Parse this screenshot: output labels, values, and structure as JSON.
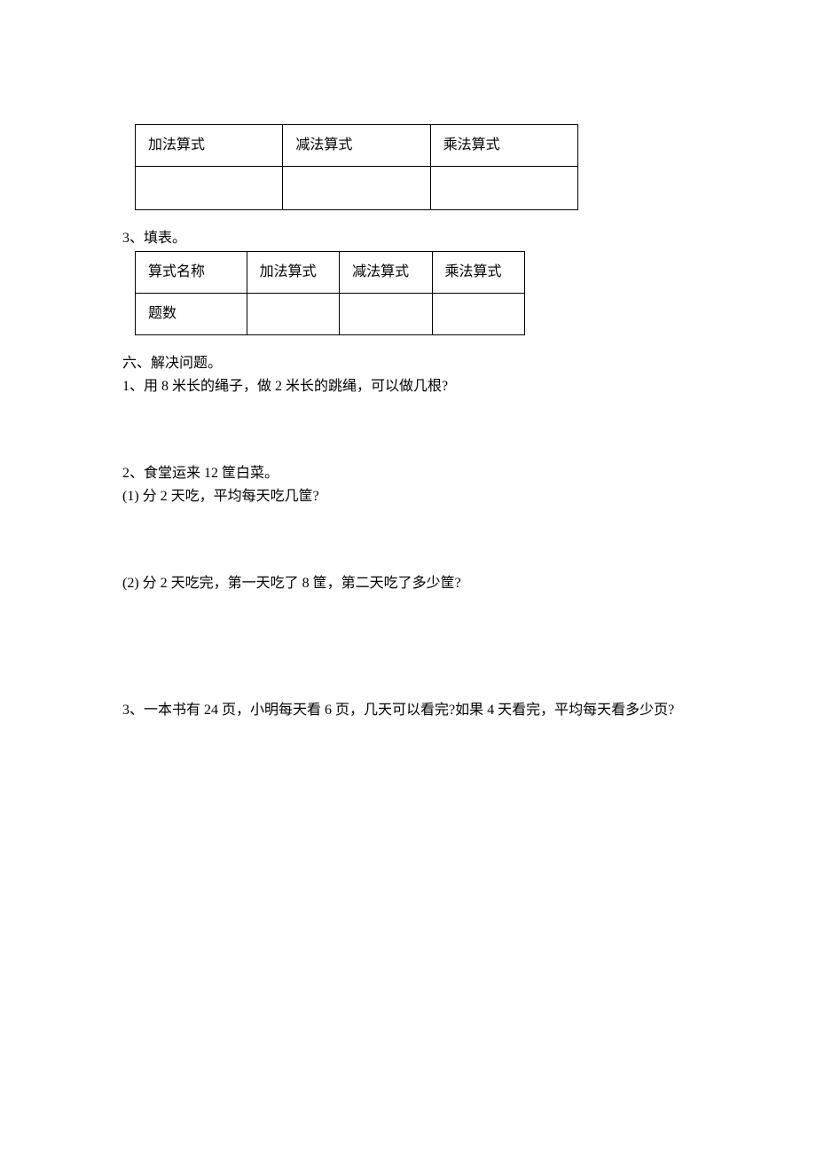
{
  "table1": {
    "headers": [
      "加法算式",
      "减法算式",
      "乘法算式"
    ]
  },
  "q3": {
    "label": "3、填表。",
    "table": {
      "row1": [
        "算式名称",
        "加法算式",
        "减法算式",
        "乘法算式"
      ],
      "row2_label": "题数"
    }
  },
  "section6": {
    "title": "六、解决问题。",
    "q1": "1、用 8 米长的绳子，做 2 米长的跳绳，可以做几根?",
    "q2": {
      "main": "2、食堂运来 12 筐白菜。",
      "p1": "(1) 分 2 天吃，平均每天吃几筐?",
      "p2": "(2) 分 2 天吃完，第一天吃了 8 筐，第二天吃了多少筐?"
    },
    "q3": "3、一本书有 24 页，小明每天看 6 页，几天可以看完?如果 4 天看完，平均每天看多少页?"
  }
}
